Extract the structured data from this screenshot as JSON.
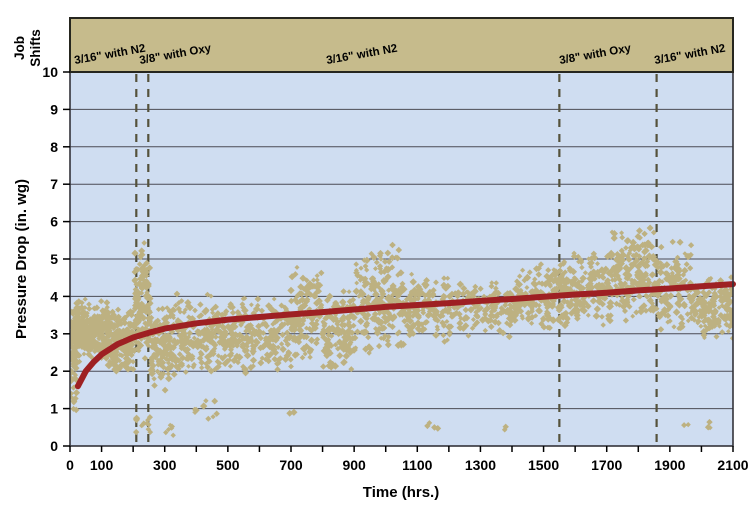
{
  "figure": {
    "x_axis_title": "Time (hrs.)",
    "y_axis_title": "Pressure Drop (in. wg)",
    "band_axis_label_line1": "Job",
    "band_axis_label_line2": "Shifts"
  },
  "chart_data": {
    "type": "scatter",
    "title": "",
    "xlabel": "Time (hrs.)",
    "ylabel": "Pressure Drop (in. wg)",
    "xlim": [
      0,
      2100
    ],
    "ylim": [
      0,
      10
    ],
    "x_tick_labels": [
      0,
      100,
      300,
      500,
      700,
      900,
      1100,
      1300,
      1500,
      1700,
      1900,
      2100
    ],
    "x_minor_tick_step": 100,
    "y_tick_step": 1,
    "grid": "horizontal",
    "legend": "none",
    "job_shifts": {
      "band_label": "Job Shifts",
      "boundaries_hrs": [
        210,
        248,
        1550,
        1858
      ],
      "segments": [
        {
          "label": "3/16\" with N2",
          "from_hr": 0,
          "to_hr": 210,
          "label_at_hr": 16
        },
        {
          "label": "3/8\" with Oxy",
          "from_hr": 210,
          "to_hr": 248,
          "label_at_hr": 222
        },
        {
          "label": "3/16\" with N2",
          "from_hr": 248,
          "to_hr": 1550,
          "label_at_hr": 814
        },
        {
          "label": "3/8\" with Oxy",
          "from_hr": 1550,
          "to_hr": 1858,
          "label_at_hr": 1552
        },
        {
          "label": "3/16\" with N2",
          "from_hr": 1858,
          "to_hr": 2100,
          "label_at_hr": 1853
        }
      ]
    },
    "trend_line": {
      "name": "pressure-drop-trend",
      "points": [
        [
          25,
          1.6
        ],
        [
          50,
          2.0
        ],
        [
          75,
          2.25
        ],
        [
          100,
          2.45
        ],
        [
          150,
          2.72
        ],
        [
          200,
          2.9
        ],
        [
          250,
          3.03
        ],
        [
          300,
          3.14
        ],
        [
          400,
          3.28
        ],
        [
          500,
          3.38
        ],
        [
          600,
          3.45
        ],
        [
          700,
          3.52
        ],
        [
          800,
          3.58
        ],
        [
          900,
          3.65
        ],
        [
          1000,
          3.72
        ],
        [
          1100,
          3.77
        ],
        [
          1200,
          3.82
        ],
        [
          1300,
          3.88
        ],
        [
          1400,
          3.93
        ],
        [
          1500,
          3.99
        ],
        [
          1600,
          4.05
        ],
        [
          1700,
          4.1
        ],
        [
          1800,
          4.16
        ],
        [
          1900,
          4.21
        ],
        [
          2000,
          4.27
        ],
        [
          2100,
          4.33
        ]
      ]
    },
    "scatter": {
      "name": "measured-pressure-drop",
      "marker": "diamond",
      "seed": 1337,
      "clusters": [
        {
          "t0": 2,
          "t1": 22,
          "ylo": 0.4,
          "yhi": 4.0,
          "n": 60,
          "cols": 2
        },
        {
          "t0": 8,
          "t1": 48,
          "ylo": 2.2,
          "yhi": 4.05,
          "n": 120,
          "cols": 4
        },
        {
          "t0": 45,
          "t1": 125,
          "ylo": 2.25,
          "yhi": 3.95,
          "n": 190,
          "cols": 8
        },
        {
          "t0": 120,
          "t1": 205,
          "ylo": 1.9,
          "yhi": 3.85,
          "n": 170,
          "cols": 8
        },
        {
          "t0": 205,
          "t1": 255,
          "ylo": 2.2,
          "yhi": 5.5,
          "n": 120,
          "cols": 4
        },
        {
          "t0": 205,
          "t1": 258,
          "ylo": 0.3,
          "yhi": 0.9,
          "n": 12,
          "cols": 3
        },
        {
          "t0": 255,
          "t1": 335,
          "ylo": 1.45,
          "yhi": 4.0,
          "n": 140,
          "cols": 5
        },
        {
          "t0": 300,
          "t1": 330,
          "ylo": 0.25,
          "yhi": 0.6,
          "n": 6,
          "cols": 2
        },
        {
          "t0": 335,
          "t1": 470,
          "ylo": 1.75,
          "yhi": 4.15,
          "n": 170,
          "cols": 7
        },
        {
          "t0": 395,
          "t1": 465,
          "ylo": 0.6,
          "yhi": 1.3,
          "n": 9,
          "cols": 3
        },
        {
          "t0": 470,
          "t1": 700,
          "ylo": 1.95,
          "yhi": 4.05,
          "n": 260,
          "cols": 11
        },
        {
          "t0": 695,
          "t1": 712,
          "ylo": 0.85,
          "yhi": 0.95,
          "n": 2,
          "cols": 1
        },
        {
          "t0": 700,
          "t1": 800,
          "ylo": 2.2,
          "yhi": 4.85,
          "n": 140,
          "cols": 5
        },
        {
          "t0": 800,
          "t1": 905,
          "ylo": 2.0,
          "yhi": 4.2,
          "n": 140,
          "cols": 5
        },
        {
          "t0": 905,
          "t1": 1060,
          "ylo": 2.4,
          "yhi": 5.5,
          "n": 210,
          "cols": 8
        },
        {
          "t0": 1060,
          "t1": 1210,
          "ylo": 2.7,
          "yhi": 4.6,
          "n": 150,
          "cols": 6
        },
        {
          "t0": 1100,
          "t1": 1165,
          "ylo": 0.35,
          "yhi": 0.7,
          "n": 4,
          "cols": 2
        },
        {
          "t0": 1210,
          "t1": 1420,
          "ylo": 2.9,
          "yhi": 4.5,
          "n": 170,
          "cols": 8
        },
        {
          "t0": 1375,
          "t1": 1392,
          "ylo": 0.4,
          "yhi": 0.55,
          "n": 2,
          "cols": 1
        },
        {
          "t0": 1420,
          "t1": 1552,
          "ylo": 3.0,
          "yhi": 4.9,
          "n": 150,
          "cols": 6
        },
        {
          "t0": 1552,
          "t1": 1712,
          "ylo": 3.1,
          "yhi": 5.2,
          "n": 190,
          "cols": 7
        },
        {
          "t0": 1712,
          "t1": 1856,
          "ylo": 3.3,
          "yhi": 5.85,
          "n": 210,
          "cols": 8
        },
        {
          "t0": 1856,
          "t1": 1968,
          "ylo": 2.9,
          "yhi": 5.6,
          "n": 130,
          "cols": 5
        },
        {
          "t0": 1940,
          "t1": 1958,
          "ylo": 0.5,
          "yhi": 0.62,
          "n": 2,
          "cols": 1
        },
        {
          "t0": 1968,
          "t1": 2100,
          "ylo": 2.8,
          "yhi": 4.6,
          "n": 170,
          "cols": 7
        },
        {
          "t0": 2008,
          "t1": 2032,
          "ylo": 0.35,
          "yhi": 0.7,
          "n": 3,
          "cols": 1
        }
      ]
    },
    "colors": {
      "plot_bg": "#cfddf1",
      "band_fill": "#c6bb8c",
      "band_border": "#26261f",
      "scatter": "#bdb181",
      "trend": "#9e2023",
      "grid": "#4b4b55",
      "plot_border": "#33333a",
      "shift_line": "#55523c",
      "text": "#000000"
    }
  }
}
